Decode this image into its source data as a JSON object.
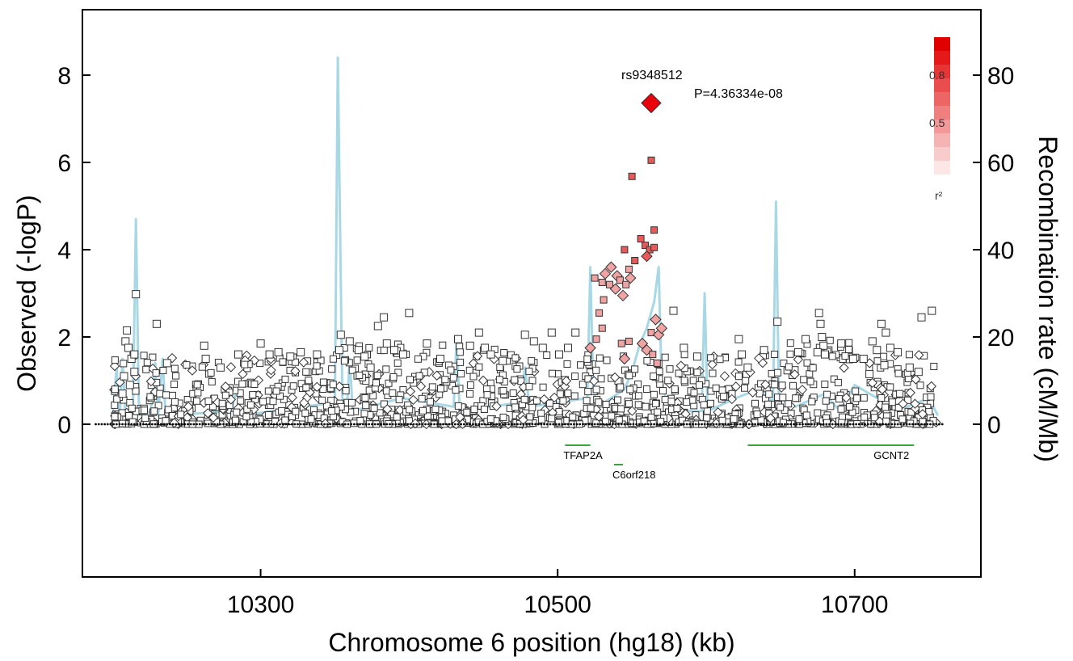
{
  "chart_data": {
    "type": "scatter",
    "xlabel": "Chromosome 6 position (hg18) (kb)",
    "ylabel": "Observed (-logP)",
    "y2label": "Recombination rate (cM/Mb)",
    "xlim": [
      10180,
      10785
    ],
    "ylim": [
      -3.5,
      9.5
    ],
    "y2lim": [
      -35,
      95
    ],
    "xticks": [
      "10300",
      "10500",
      "10700"
    ],
    "yticks": [
      "0",
      "2",
      "4",
      "6",
      "8"
    ],
    "y2ticks": [
      "0",
      "20",
      "40",
      "60",
      "80"
    ],
    "colors": {
      "recombination": "#a8d8e6",
      "gene": "#3aa63a",
      "lead": "#e8000b",
      "high_ld": "#e85a5a",
      "mid_ld": "#f0a3a3",
      "low_ld": "#ffffff",
      "marker_stroke": "#333333"
    },
    "lead_snp": {
      "label": "rs9348512",
      "p_label": "P=4.36334e-08",
      "x": 10563,
      "y": 7.36
    },
    "legend": {
      "title": "r²",
      "labels": [
        "0.8",
        "0.5"
      ]
    },
    "genes": [
      {
        "name": "TFAP2A",
        "start": 10505,
        "end": 10522,
        "row": 0
      },
      {
        "name": "C6orf218",
        "start": 10538,
        "end": 10544,
        "row": 1
      },
      {
        "name": "GCNT2",
        "start": 10628,
        "end": 10740,
        "row": 0
      }
    ],
    "recombination": [
      [
        10200,
        0.5
      ],
      [
        10203,
        13
      ],
      [
        10205,
        1
      ],
      [
        10207,
        15
      ],
      [
        10209,
        2
      ],
      [
        10214,
        3
      ],
      [
        10216,
        47
      ],
      [
        10218,
        5
      ],
      [
        10220,
        2
      ],
      [
        10226,
        3
      ],
      [
        10229,
        14
      ],
      [
        10231,
        2
      ],
      [
        10234,
        15
      ],
      [
        10236,
        2
      ],
      [
        10280,
        3
      ],
      [
        10284,
        8
      ],
      [
        10287,
        2
      ],
      [
        10350,
        5
      ],
      [
        10352,
        84
      ],
      [
        10355,
        6
      ],
      [
        10358,
        3
      ],
      [
        10360,
        15
      ],
      [
        10362,
        3
      ],
      [
        10395,
        6
      ],
      [
        10430,
        4
      ],
      [
        10432,
        20
      ],
      [
        10434,
        3
      ],
      [
        10475,
        5
      ],
      [
        10478,
        13
      ],
      [
        10481,
        4
      ],
      [
        10520,
        6
      ],
      [
        10522,
        36
      ],
      [
        10524,
        8
      ],
      [
        10527,
        4
      ],
      [
        10545,
        8
      ],
      [
        10550,
        12
      ],
      [
        10555,
        18
      ],
      [
        10560,
        22
      ],
      [
        10565,
        28
      ],
      [
        10568,
        36
      ],
      [
        10570,
        10
      ],
      [
        10574,
        4
      ],
      [
        10590,
        3
      ],
      [
        10597,
        3
      ],
      [
        10599,
        30
      ],
      [
        10601,
        3
      ],
      [
        10620,
        6
      ],
      [
        10635,
        8
      ],
      [
        10645,
        5
      ],
      [
        10647,
        51
      ],
      [
        10649,
        6
      ],
      [
        10660,
        4
      ],
      [
        10680,
        7
      ],
      [
        10690,
        3
      ],
      [
        10700,
        9
      ],
      [
        10720,
        5
      ],
      [
        10735,
        4
      ],
      [
        10750,
        6
      ],
      [
        10756,
        2
      ]
    ],
    "highlight_points": [
      {
        "x": 10563,
        "y": 6.05,
        "shape": "square",
        "ld": "high"
      },
      {
        "x": 10550,
        "y": 5.68,
        "shape": "square",
        "ld": "high"
      },
      {
        "x": 10565,
        "y": 4.45,
        "shape": "square",
        "ld": "high"
      },
      {
        "x": 10556,
        "y": 4.25,
        "shape": "square",
        "ld": "high"
      },
      {
        "x": 10559,
        "y": 4.1,
        "shape": "square",
        "ld": "high"
      },
      {
        "x": 10562,
        "y": 4.0,
        "shape": "square",
        "ld": "high"
      },
      {
        "x": 10565,
        "y": 4.05,
        "shape": "square",
        "ld": "high"
      },
      {
        "x": 10560,
        "y": 3.85,
        "shape": "diamond",
        "ld": "high"
      },
      {
        "x": 10552,
        "y": 3.75,
        "shape": "square",
        "ld": "high"
      },
      {
        "x": 10545,
        "y": 4.0,
        "shape": "square",
        "ld": "high"
      },
      {
        "x": 10548,
        "y": 3.55,
        "shape": "square",
        "ld": "mid"
      },
      {
        "x": 10536,
        "y": 3.6,
        "shape": "diamond",
        "ld": "mid"
      },
      {
        "x": 10540,
        "y": 3.4,
        "shape": "diamond",
        "ld": "mid"
      },
      {
        "x": 10532,
        "y": 3.45,
        "shape": "diamond",
        "ld": "mid"
      },
      {
        "x": 10530,
        "y": 3.25,
        "shape": "square",
        "ld": "mid"
      },
      {
        "x": 10535,
        "y": 3.2,
        "shape": "square",
        "ld": "mid"
      },
      {
        "x": 10539,
        "y": 3.1,
        "shape": "diamond",
        "ld": "mid"
      },
      {
        "x": 10542,
        "y": 3.3,
        "shape": "square",
        "ld": "mid"
      },
      {
        "x": 10546,
        "y": 3.2,
        "shape": "square",
        "ld": "mid"
      },
      {
        "x": 10549,
        "y": 3.35,
        "shape": "diamond",
        "ld": "mid"
      },
      {
        "x": 10544,
        "y": 2.95,
        "shape": "diamond",
        "ld": "mid"
      },
      {
        "x": 10531,
        "y": 2.85,
        "shape": "square",
        "ld": "mid"
      },
      {
        "x": 10525,
        "y": 3.35,
        "shape": "square",
        "ld": "mid"
      },
      {
        "x": 10528,
        "y": 2.55,
        "shape": "square",
        "ld": "mid"
      },
      {
        "x": 10530,
        "y": 2.2,
        "shape": "square",
        "ld": "mid"
      },
      {
        "x": 10526,
        "y": 1.95,
        "shape": "square",
        "ld": "mid"
      },
      {
        "x": 10522,
        "y": 1.75,
        "shape": "diamond",
        "ld": "mid"
      },
      {
        "x": 10543,
        "y": 1.85,
        "shape": "square",
        "ld": "mid"
      },
      {
        "x": 10548,
        "y": 1.9,
        "shape": "square",
        "ld": "mid"
      },
      {
        "x": 10557,
        "y": 1.85,
        "shape": "diamond",
        "ld": "mid"
      },
      {
        "x": 10560,
        "y": 1.7,
        "shape": "diamond",
        "ld": "mid"
      },
      {
        "x": 10563,
        "y": 2.1,
        "shape": "square",
        "ld": "mid"
      },
      {
        "x": 10566,
        "y": 2.4,
        "shape": "diamond",
        "ld": "mid"
      },
      {
        "x": 10568,
        "y": 2.05,
        "shape": "diamond",
        "ld": "mid"
      },
      {
        "x": 10570,
        "y": 2.2,
        "shape": "diamond",
        "ld": "mid"
      },
      {
        "x": 10564,
        "y": 1.6,
        "shape": "square",
        "ld": "mid"
      },
      {
        "x": 10567,
        "y": 1.4,
        "shape": "square",
        "ld": "mid"
      },
      {
        "x": 10545,
        "y": 1.5,
        "shape": "diamond",
        "ld": "mid"
      }
    ],
    "background_points": [
      {
        "x": 10216,
        "y": 2.98
      },
      {
        "x": 10210,
        "y": 2.15
      },
      {
        "x": 10209,
        "y": 1.9
      },
      {
        "x": 10211,
        "y": 1.75
      },
      {
        "x": 10213,
        "y": 1.5
      },
      {
        "x": 10215,
        "y": 1.6
      },
      {
        "x": 10208,
        "y": 1.1
      },
      {
        "x": 10212,
        "y": 0.9
      },
      {
        "x": 10215,
        "y": 1.2
      },
      {
        "x": 10207,
        "y": 0.7
      },
      {
        "x": 10230,
        "y": 2.3
      },
      {
        "x": 10237,
        "y": 1.4
      },
      {
        "x": 10262,
        "y": 1.8
      },
      {
        "x": 10263,
        "y": 1.5
      },
      {
        "x": 10273,
        "y": 1.3
      },
      {
        "x": 10285,
        "y": 1.6
      },
      {
        "x": 10300,
        "y": 1.85
      },
      {
        "x": 10306,
        "y": 1.6
      },
      {
        "x": 10312,
        "y": 1.65
      },
      {
        "x": 10320,
        "y": 1.55
      },
      {
        "x": 10327,
        "y": 1.65
      },
      {
        "x": 10338,
        "y": 1.6
      },
      {
        "x": 10354,
        "y": 2.05
      },
      {
        "x": 10353,
        "y": 1.7
      },
      {
        "x": 10360,
        "y": 1.9
      },
      {
        "x": 10366,
        "y": 1.7
      },
      {
        "x": 10370,
        "y": 1.55
      },
      {
        "x": 10374,
        "y": 1.3
      },
      {
        "x": 10379,
        "y": 2.25
      },
      {
        "x": 10383,
        "y": 2.45
      },
      {
        "x": 10385,
        "y": 1.85
      },
      {
        "x": 10390,
        "y": 1.7
      },
      {
        "x": 10396,
        "y": 1.6
      },
      {
        "x": 10400,
        "y": 2.55
      },
      {
        "x": 10412,
        "y": 1.85
      },
      {
        "x": 10421,
        "y": 1.5
      },
      {
        "x": 10433,
        "y": 1.95
      },
      {
        "x": 10441,
        "y": 1.8
      },
      {
        "x": 10447,
        "y": 2.1
      },
      {
        "x": 10451,
        "y": 1.75
      },
      {
        "x": 10455,
        "y": 1.6
      },
      {
        "x": 10463,
        "y": 1.45
      },
      {
        "x": 10478,
        "y": 2.05
      },
      {
        "x": 10484,
        "y": 1.9
      },
      {
        "x": 10490,
        "y": 1.75
      },
      {
        "x": 10496,
        "y": 2.1
      },
      {
        "x": 10501,
        "y": 1.6
      },
      {
        "x": 10507,
        "y": 1.75
      },
      {
        "x": 10512,
        "y": 2.1
      },
      {
        "x": 10578,
        "y": 2.6
      },
      {
        "x": 10585,
        "y": 1.75
      },
      {
        "x": 10594,
        "y": 1.55
      },
      {
        "x": 10622,
        "y": 1.95
      },
      {
        "x": 10624,
        "y": 1.6
      },
      {
        "x": 10628,
        "y": 1.3
      },
      {
        "x": 10639,
        "y": 1.7
      },
      {
        "x": 10648,
        "y": 2.35
      },
      {
        "x": 10662,
        "y": 1.65
      },
      {
        "x": 10667,
        "y": 1.95
      },
      {
        "x": 10676,
        "y": 2.55
      },
      {
        "x": 10677,
        "y": 2.3
      },
      {
        "x": 10678,
        "y": 2.0
      },
      {
        "x": 10679,
        "y": 1.8
      },
      {
        "x": 10680,
        "y": 1.6
      },
      {
        "x": 10675,
        "y": 1.65
      },
      {
        "x": 10691,
        "y": 1.85
      },
      {
        "x": 10699,
        "y": 1.5
      },
      {
        "x": 10706,
        "y": 1.5
      },
      {
        "x": 10712,
        "y": 1.9
      },
      {
        "x": 10715,
        "y": 1.7
      },
      {
        "x": 10718,
        "y": 2.3
      },
      {
        "x": 10721,
        "y": 2.1
      },
      {
        "x": 10724,
        "y": 1.75
      },
      {
        "x": 10729,
        "y": 1.65
      },
      {
        "x": 10745,
        "y": 2.45
      },
      {
        "x": 10752,
        "y": 2.6
      },
      {
        "x": 10737,
        "y": 1.3
      },
      {
        "x": 10743,
        "y": 1.2
      },
      {
        "x": 10720,
        "y": 1.35
      },
      {
        "x": 10710,
        "y": 1.15
      }
    ]
  }
}
